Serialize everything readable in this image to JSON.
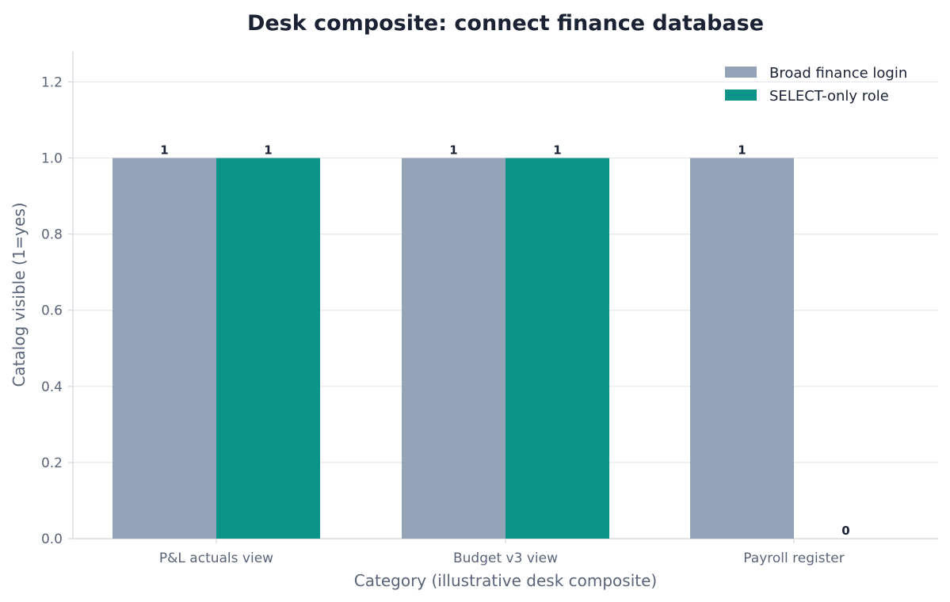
{
  "chart_data": {
    "type": "bar",
    "title": "Desk composite: connect finance database",
    "xlabel": "Category (illustrative desk composite)",
    "ylabel": "Catalog visible (1=yes)",
    "categories": [
      "P&L actuals view",
      "Budget v3 view",
      "Payroll register"
    ],
    "series": [
      {
        "name": "Broad finance login",
        "values": [
          1,
          1,
          1
        ],
        "color": "#94a3b8"
      },
      {
        "name": "SELECT-only role",
        "values": [
          1,
          1,
          0
        ],
        "color": "#0d9488"
      }
    ],
    "ylim": [
      0,
      1.28
    ],
    "yticks": [
      "0.0",
      "0.2",
      "0.4",
      "0.6",
      "0.8",
      "1.0",
      "1.2"
    ],
    "data_labels": [
      [
        "1",
        "1",
        "1"
      ],
      [
        "1",
        "1",
        "0"
      ]
    ],
    "grid": "horizontal",
    "legend_position": "top-right"
  }
}
